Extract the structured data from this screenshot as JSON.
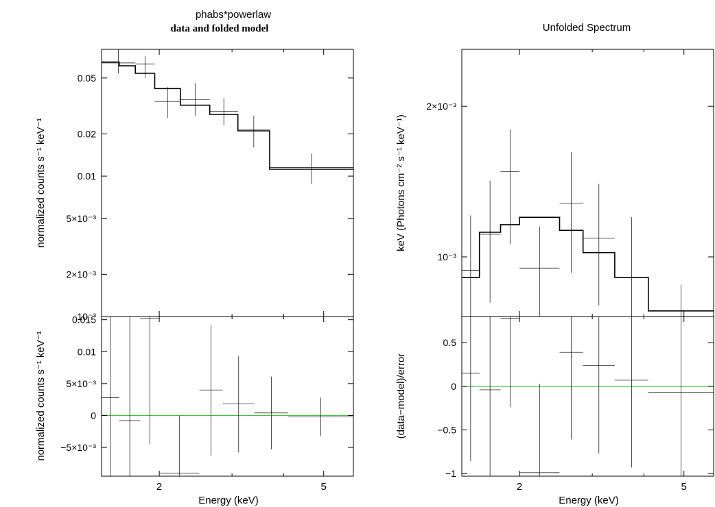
{
  "chart_data": [
    {
      "id": "left-top",
      "type": "line",
      "title": "phabs*powerlaw",
      "subtitle": "data and folded model",
      "xlabel": "",
      "ylabel": "normalized counts s⁻¹ keV⁻¹",
      "xscale": "log",
      "yscale": "log",
      "xlim": [
        1.45,
        5.9
      ],
      "ylim": [
        0.001,
        0.08
      ],
      "xticks": [],
      "yticks": [
        {
          "v": 0.05,
          "label": "0.05"
        },
        {
          "v": 0.02,
          "label": "0.02"
        },
        {
          "v": 0.01,
          "label": "0.01"
        },
        {
          "v": 0.005,
          "label": "5×10⁻³"
        },
        {
          "v": 0.002,
          "label": "2×10⁻³"
        },
        {
          "v": 0.001,
          "label": "10⁻³"
        }
      ],
      "data_points": [
        {
          "x0": 1.45,
          "x1": 1.75,
          "y": 0.064,
          "ylo": 0.054,
          "yhi": 0.08
        },
        {
          "x0": 1.75,
          "x1": 1.95,
          "y": 0.063,
          "ylo": 0.05,
          "yhi": 0.072
        },
        {
          "x0": 1.95,
          "x1": 2.25,
          "y": 0.034,
          "ylo": 0.026,
          "yhi": 0.043
        },
        {
          "x0": 2.25,
          "x1": 2.65,
          "y": 0.035,
          "ylo": 0.027,
          "yhi": 0.046
        },
        {
          "x0": 2.65,
          "x1": 3.1,
          "y": 0.029,
          "ylo": 0.023,
          "yhi": 0.036
        },
        {
          "x0": 3.1,
          "x1": 3.7,
          "y": 0.0215,
          "ylo": 0.016,
          "yhi": 0.027
        },
        {
          "x0": 3.7,
          "x1": 5.9,
          "y": 0.0115,
          "ylo": 0.0088,
          "yhi": 0.0145
        }
      ],
      "model_steps": [
        {
          "x0": 1.45,
          "x1": 1.6,
          "y": 0.065
        },
        {
          "x0": 1.6,
          "x1": 1.75,
          "y": 0.061
        },
        {
          "x0": 1.75,
          "x1": 1.95,
          "y": 0.054
        },
        {
          "x0": 1.95,
          "x1": 2.25,
          "y": 0.042
        },
        {
          "x0": 2.25,
          "x1": 2.65,
          "y": 0.032
        },
        {
          "x0": 2.65,
          "x1": 3.1,
          "y": 0.0275
        },
        {
          "x0": 3.1,
          "x1": 3.7,
          "y": 0.021
        },
        {
          "x0": 3.7,
          "x1": 5.9,
          "y": 0.0112
        }
      ]
    },
    {
      "id": "left-bottom",
      "type": "line",
      "xlabel": "Energy (keV)",
      "ylabel": "normalized counts s⁻¹ keV⁻¹",
      "xscale": "log",
      "yscale": "linear",
      "xlim": [
        1.45,
        5.9
      ],
      "ylim": [
        -0.0095,
        0.0155
      ],
      "xticks": [
        {
          "v": 2,
          "label": "2"
        },
        {
          "v": 5,
          "label": "5"
        }
      ],
      "yticks": [
        {
          "v": 0.015,
          "label": "0.015"
        },
        {
          "v": 0.01,
          "label": "0.01"
        },
        {
          "v": 0.005,
          "label": "5×10⁻³"
        },
        {
          "v": 0,
          "label": "0"
        },
        {
          "v": -0.005,
          "label": "−5×10⁻³"
        }
      ],
      "zero_line_color": "#33cc33",
      "data_points": [
        {
          "x0": 1.45,
          "x1": 1.6,
          "y": 0.0028,
          "ylo": -0.0095,
          "yhi": 0.0155
        },
        {
          "x0": 1.6,
          "x1": 1.8,
          "y": -0.0008,
          "ylo": -0.0095,
          "yhi": 0.0155
        },
        {
          "x0": 1.8,
          "x1": 2.0,
          "y": 0.0152,
          "ylo": -0.0045,
          "yhi": 0.0155
        },
        {
          "x0": 2.0,
          "x1": 2.5,
          "y": -0.009,
          "ylo": -0.0095,
          "yhi": 0.0
        },
        {
          "x0": 2.5,
          "x1": 2.85,
          "y": 0.004,
          "ylo": -0.0063,
          "yhi": 0.0142
        },
        {
          "x0": 2.85,
          "x1": 3.4,
          "y": 0.0018,
          "ylo": -0.0058,
          "yhi": 0.0093
        },
        {
          "x0": 3.4,
          "x1": 4.1,
          "y": 0.0004,
          "ylo": -0.0053,
          "yhi": 0.0061
        },
        {
          "x0": 4.1,
          "x1": 5.9,
          "y": -0.0002,
          "ylo": -0.0032,
          "yhi": 0.0028
        }
      ]
    },
    {
      "id": "right-top",
      "type": "line",
      "title": "Unfolded Spectrum",
      "xlabel": "",
      "ylabel": "keV (Photons cm⁻² s⁻¹ keV⁻¹)",
      "xscale": "log",
      "yscale": "log",
      "xlim": [
        1.45,
        5.9
      ],
      "ylim": [
        0.00076,
        0.0026
      ],
      "xticks": [],
      "yticks": [
        {
          "v": 0.002,
          "label": "2×10⁻³"
        },
        {
          "v": 0.001,
          "label": "10⁻³"
        }
      ],
      "data_points": [
        {
          "x0": 1.45,
          "x1": 1.6,
          "y": 0.00094,
          "ylo": 0.00076,
          "yhi": 0.00121
        },
        {
          "x0": 1.6,
          "x1": 1.8,
          "y": 0.00111,
          "ylo": 0.00081,
          "yhi": 0.00142
        },
        {
          "x0": 1.8,
          "x1": 2.0,
          "y": 0.00148,
          "ylo": 0.00106,
          "yhi": 0.0018
        },
        {
          "x0": 2.0,
          "x1": 2.5,
          "y": 0.00095,
          "ylo": 0.00076,
          "yhi": 0.00115
        },
        {
          "x0": 2.5,
          "x1": 2.85,
          "y": 0.00128,
          "ylo": 0.00093,
          "yhi": 0.00162
        },
        {
          "x0": 2.85,
          "x1": 3.4,
          "y": 0.00109,
          "ylo": 0.0008,
          "yhi": 0.0014
        },
        {
          "x0": 3.4,
          "x1": 4.1,
          "y": 0.00091,
          "ylo": 0.00076,
          "yhi": 0.0012
        },
        {
          "x0": 4.1,
          "x1": 5.9,
          "y": 0.00076,
          "ylo": 0.00076,
          "yhi": 0.00088
        }
      ],
      "model_steps": [
        {
          "x0": 1.45,
          "x1": 1.6,
          "y": 0.00091
        },
        {
          "x0": 1.6,
          "x1": 1.8,
          "y": 0.00112
        },
        {
          "x0": 1.8,
          "x1": 2.0,
          "y": 0.00116
        },
        {
          "x0": 2.0,
          "x1": 2.5,
          "y": 0.0012
        },
        {
          "x0": 2.5,
          "x1": 2.85,
          "y": 0.00113
        },
        {
          "x0": 2.85,
          "x1": 3.4,
          "y": 0.00102
        },
        {
          "x0": 3.4,
          "x1": 4.1,
          "y": 0.00091
        },
        {
          "x0": 4.1,
          "x1": 5.9,
          "y": 0.00078
        }
      ]
    },
    {
      "id": "right-bottom",
      "type": "line",
      "xlabel": "Energy (keV)",
      "ylabel": "(data−model)/error",
      "xscale": "log",
      "yscale": "linear",
      "xlim": [
        1.45,
        5.9
      ],
      "ylim": [
        -1.03,
        0.8
      ],
      "xticks": [
        {
          "v": 2,
          "label": "2"
        },
        {
          "v": 5,
          "label": "5"
        }
      ],
      "yticks": [
        {
          "v": 0.5,
          "label": "0.5"
        },
        {
          "v": 0,
          "label": "0"
        },
        {
          "v": -0.5,
          "label": "−0.5"
        },
        {
          "v": -1,
          "label": "−1"
        }
      ],
      "zero_line_color": "#33cc33",
      "data_points": [
        {
          "x0": 1.45,
          "x1": 1.6,
          "y": 0.15,
          "ylo": -0.86,
          "yhi": 0.8
        },
        {
          "x0": 1.6,
          "x1": 1.8,
          "y": -0.04,
          "ylo": -1.03,
          "yhi": 0.8
        },
        {
          "x0": 1.8,
          "x1": 2.0,
          "y": 0.78,
          "ylo": -0.24,
          "yhi": 0.8
        },
        {
          "x0": 2.0,
          "x1": 2.5,
          "y": -0.99,
          "ylo": -1.03,
          "yhi": 0.03
        },
        {
          "x0": 2.5,
          "x1": 2.85,
          "y": 0.39,
          "ylo": -0.61,
          "yhi": 0.8
        },
        {
          "x0": 2.85,
          "x1": 3.4,
          "y": 0.24,
          "ylo": -0.77,
          "yhi": 0.8
        },
        {
          "x0": 3.4,
          "x1": 4.1,
          "y": 0.07,
          "ylo": -0.93,
          "yhi": 0.8
        },
        {
          "x0": 4.1,
          "x1": 5.9,
          "y": -0.07,
          "ylo": -1.03,
          "yhi": 0.8
        }
      ]
    }
  ]
}
